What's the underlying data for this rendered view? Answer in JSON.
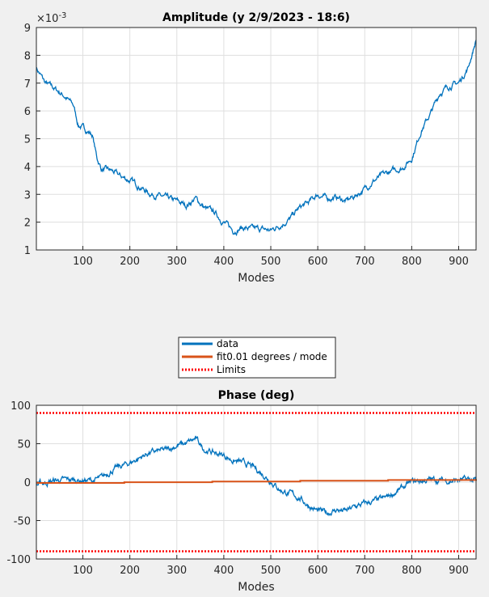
{
  "chart_data": [
    {
      "type": "line",
      "title": "Amplitude (y 2/9/2023 - 18:6)",
      "xlabel": "Modes",
      "ylabel": "",
      "exponent_label": "×10",
      "exponent_power": "-3",
      "xlim": [
        1,
        937
      ],
      "ylim": [
        1,
        9
      ],
      "xticks": [
        "100",
        "200",
        "300",
        "400",
        "500",
        "600",
        "700",
        "800",
        "900"
      ],
      "yticks": [
        "1",
        "2",
        "3",
        "4",
        "5",
        "6",
        "7",
        "8",
        "9"
      ],
      "grid": true,
      "series": [
        {
          "color": "#0072BD",
          "x": [
            1,
            20,
            40,
            60,
            80,
            90,
            100,
            120,
            130,
            140,
            160,
            180,
            200,
            220,
            240,
            260,
            280,
            300,
            320,
            340,
            360,
            380,
            400,
            420,
            440,
            460,
            480,
            500,
            520,
            540,
            560,
            580,
            600,
            620,
            640,
            660,
            680,
            700,
            720,
            740,
            760,
            780,
            800,
            820,
            840,
            860,
            880,
            900,
            920,
            937
          ],
          "y": [
            7.55,
            7.0,
            6.8,
            6.55,
            6.2,
            5.5,
            5.4,
            5.15,
            4.3,
            3.9,
            3.85,
            3.65,
            3.5,
            3.3,
            3.05,
            2.95,
            2.85,
            2.75,
            2.6,
            2.85,
            2.5,
            2.35,
            2.0,
            1.7,
            1.8,
            1.75,
            1.75,
            1.7,
            1.9,
            2.1,
            2.5,
            2.7,
            3.0,
            2.85,
            2.9,
            2.75,
            2.95,
            3.2,
            3.5,
            3.7,
            3.85,
            3.95,
            4.3,
            5.3,
            5.9,
            6.65,
            6.9,
            7.0,
            7.55,
            8.55
          ]
        }
      ]
    },
    {
      "type": "line",
      "title": "Phase (deg)",
      "xlabel": "Modes",
      "ylabel": "",
      "xlim": [
        1,
        937
      ],
      "ylim": [
        -100,
        100
      ],
      "xticks": [
        "100",
        "200",
        "300",
        "400",
        "500",
        "600",
        "700",
        "800",
        "900"
      ],
      "yticks": [
        "-100",
        "-50",
        "0",
        "50",
        "100"
      ],
      "grid": true,
      "legend": "above",
      "series": [
        {
          "name": "data",
          "color": "#0072BD",
          "x": [
            1,
            40,
            80,
            120,
            140,
            160,
            200,
            240,
            280,
            300,
            320,
            340,
            360,
            380,
            400,
            420,
            440,
            460,
            480,
            500,
            520,
            540,
            560,
            580,
            600,
            620,
            640,
            660,
            680,
            700,
            720,
            740,
            760,
            780,
            800,
            840,
            880,
            920,
            937
          ],
          "y": [
            -3,
            2,
            3,
            2,
            5,
            15,
            25,
            38,
            42,
            48,
            50,
            56,
            42,
            38,
            35,
            28,
            25,
            20,
            12,
            2,
            -10,
            -15,
            -20,
            -30,
            -38,
            -40,
            -36,
            -38,
            -32,
            -28,
            -25,
            -22,
            -15,
            -8,
            0,
            3,
            2,
            3,
            2
          ]
        },
        {
          "name": "fit0.01 degrees / mode",
          "color": "#D95319",
          "x": [
            1,
            937
          ],
          "y": [
            -1.0,
            3.7
          ]
        },
        {
          "name": "Limits",
          "color": "#FF0000",
          "dashed": true,
          "x": [
            1,
            937
          ],
          "y": [
            90,
            90
          ]
        },
        {
          "color": "#FF0000",
          "dashed": true,
          "x": [
            1,
            937
          ],
          "y": [
            -90,
            -90
          ]
        }
      ]
    }
  ]
}
